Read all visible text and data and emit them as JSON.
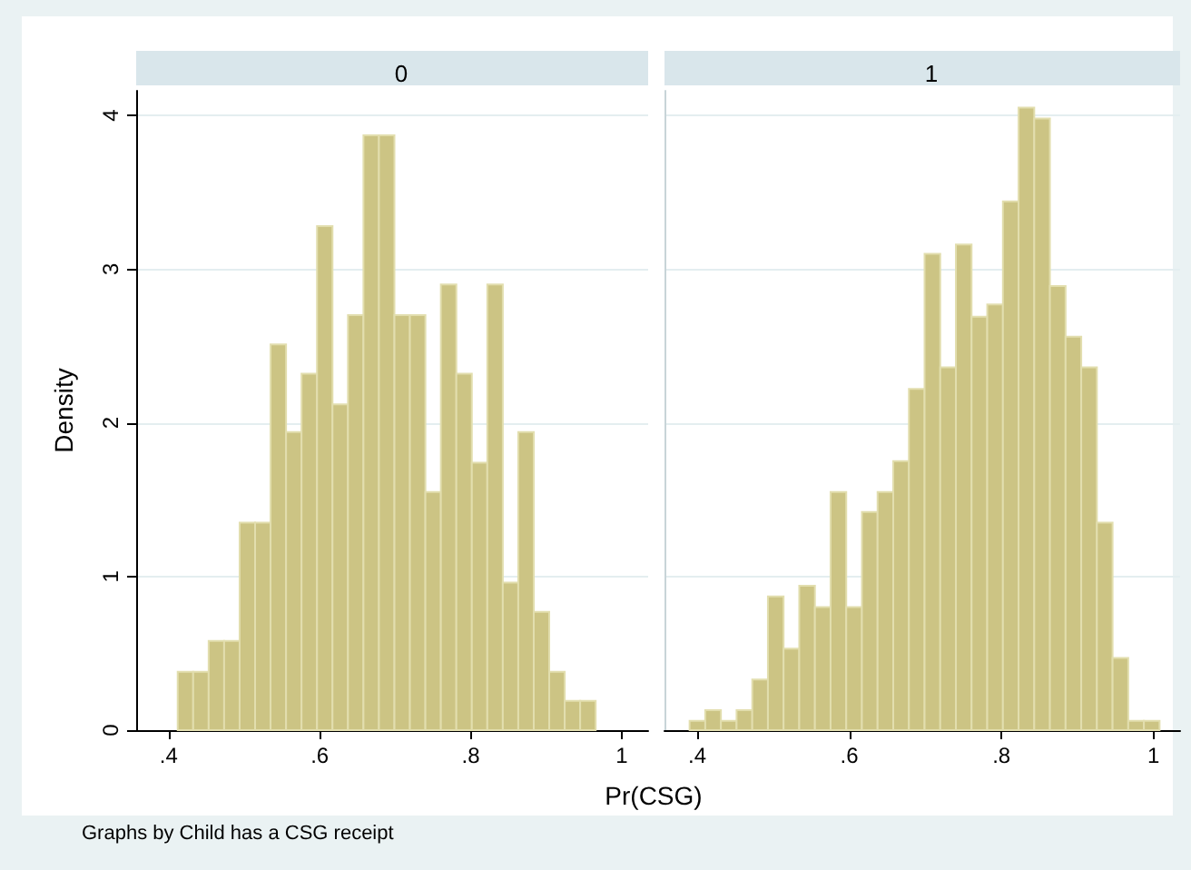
{
  "chart_data": [
    {
      "type": "histogram",
      "title": "0",
      "ylabel": "Density",
      "xlabel": "Pr(CSG)",
      "annotations": [
        "Graphs by Child has a CSG receipt"
      ],
      "color": "#ccc484",
      "bins": [
        0.412,
        0.4325,
        0.453,
        0.4735,
        0.494,
        0.5145,
        0.535,
        0.5555,
        0.576,
        0.5965,
        0.617,
        0.6375,
        0.658,
        0.6785,
        0.699,
        0.7195,
        0.74,
        0.7605,
        0.781,
        0.8015,
        0.822,
        0.8425,
        0.863,
        0.8835,
        0.904,
        0.9245,
        0.945,
        0.9655
      ],
      "values": [
        0.38,
        0.38,
        0.58,
        0.58,
        1.35,
        1.35,
        2.51,
        1.94,
        2.32,
        3.28,
        2.12,
        2.7,
        3.87,
        3.87,
        2.7,
        2.7,
        1.55,
        2.9,
        2.32,
        1.74,
        2.9,
        0.96,
        1.94,
        0.77,
        0.38,
        0.19,
        0.19
      ],
      "xlim": [
        0.357,
        1.035
      ],
      "xticks": [
        {
          "value": 0.4,
          "label": ".4"
        },
        {
          "value": 0.6,
          "label": ".6"
        },
        {
          "value": 0.8,
          "label": ".8"
        },
        1
      ],
      "ylim": [
        0,
        4.16
      ],
      "yticks": [
        0,
        1,
        2,
        3,
        4
      ],
      "grid": "y"
    },
    {
      "type": "histogram",
      "title": "1",
      "color": "#ccc484",
      "bins": [
        0.39,
        0.4106,
        0.4312,
        0.4518,
        0.4724,
        0.493,
        0.5136,
        0.5342,
        0.5548,
        0.5754,
        0.596,
        0.6166,
        0.6372,
        0.6578,
        0.6784,
        0.699,
        0.7196,
        0.7402,
        0.7608,
        0.7814,
        0.802,
        0.8226,
        0.8432,
        0.8638,
        0.8844,
        0.905,
        0.9256,
        0.9462,
        0.9668,
        0.9874,
        1.008
      ],
      "values": [
        0.06,
        0.13,
        0.06,
        0.13,
        0.33,
        0.87,
        0.53,
        0.94,
        0.8,
        1.55,
        0.8,
        1.42,
        1.55,
        1.75,
        2.22,
        3.1,
        2.36,
        3.16,
        2.69,
        2.77,
        3.44,
        4.05,
        3.98,
        2.89,
        2.56,
        2.36,
        1.35,
        0.47,
        0.06,
        0.06
      ],
      "xlim": [
        0.357,
        1.035
      ],
      "xticks": [
        {
          "value": 0.4,
          "label": ".4"
        },
        {
          "value": 0.6,
          "label": ".6"
        },
        {
          "value": 0.8,
          "label": ".8"
        },
        1
      ],
      "ylim": [
        0,
        4.16
      ],
      "yticks": [
        0,
        1,
        2,
        3,
        4
      ],
      "grid": "y",
      "tick_labels": "x"
    }
  ]
}
